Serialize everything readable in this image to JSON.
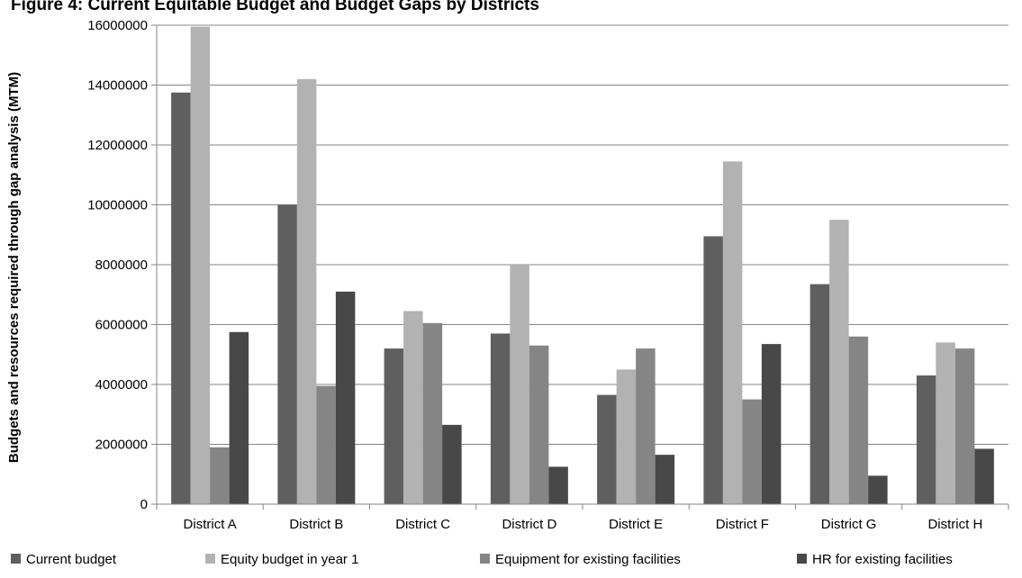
{
  "chart_data": {
    "type": "bar",
    "title": "Figure 4: Current Equitable Budget and Budget Gaps by Districts",
    "xlabel": "",
    "ylabel": "Budgets and resources required through gap analysis (MTM)",
    "ylim": [
      0,
      16000000
    ],
    "yticks": [
      "0",
      "2000000",
      "4000000",
      "6000000",
      "8000000",
      "10000000",
      "12000000",
      "14000000",
      "16000000"
    ],
    "grid": true,
    "legend_position": "bottom",
    "categories": [
      "District A",
      "District B",
      "District C",
      "District D",
      "District E",
      "District F",
      "District G",
      "District H"
    ],
    "series": [
      {
        "name": "Current budget",
        "color": "#5f5f5f",
        "values": [
          13750000,
          10000000,
          5200000,
          5700000,
          3650000,
          8950000,
          7350000,
          4300000
        ]
      },
      {
        "name": "Equity budget in year 1",
        "color": "#b2b2b2",
        "values": [
          15950000,
          14200000,
          6450000,
          8000000,
          4500000,
          11450000,
          9500000,
          5400000
        ]
      },
      {
        "name": "Equipment for existing facilities",
        "color": "#858585",
        "values": [
          1900000,
          3950000,
          6050000,
          5300000,
          5200000,
          3500000,
          5600000,
          5200000
        ]
      },
      {
        "name": "HR for existing facilities",
        "color": "#484848",
        "values": [
          5750000,
          7100000,
          2650000,
          1250000,
          1650000,
          5350000,
          950000,
          1850000
        ]
      }
    ]
  }
}
